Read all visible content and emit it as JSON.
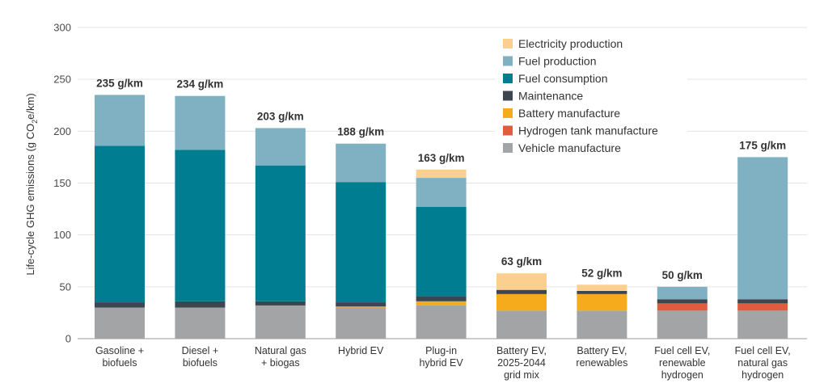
{
  "chart_data": {
    "type": "bar",
    "stacked": true,
    "ylabel_parts": [
      "Life-cycle GHG emissions (g CO",
      "2",
      "e/km)"
    ],
    "ylim": [
      0,
      300
    ],
    "yticks": [
      0,
      50,
      100,
      150,
      200,
      250,
      300
    ],
    "grid": true,
    "legend_position": "top-right",
    "categories": [
      [
        "Gasoline +",
        "biofuels"
      ],
      [
        "Diesel +",
        "biofuels"
      ],
      [
        "Natural gas",
        "+ biogas"
      ],
      [
        "Hybrid EV"
      ],
      [
        "Plug-in",
        "hybrid EV"
      ],
      [
        "Battery EV,",
        "2025-2044",
        "grid mix"
      ],
      [
        "Battery EV,",
        "renewables"
      ],
      [
        "Fuel cell EV,",
        "renewable",
        "hydrogen"
      ],
      [
        "Fuel cell EV,",
        "natural gas",
        "hydrogen"
      ]
    ],
    "totals": [
      "235 g/km",
      "234 g/km",
      "203 g/km",
      "188 g/km",
      "163 g/km",
      "63 g/km",
      "52 g/km",
      "50 g/km",
      "175 g/km"
    ],
    "series": [
      {
        "name": "Vehicle manufacture",
        "color": "#a3a4a6",
        "values": [
          30,
          30,
          32,
          30,
          32,
          27,
          27,
          27,
          27
        ]
      },
      {
        "name": "Hydrogen tank manufacture",
        "color": "#e15b3f",
        "values": [
          0,
          0,
          0,
          0,
          0,
          0,
          0,
          7,
          7
        ]
      },
      {
        "name": "Battery manufacture",
        "color": "#f5ab1c",
        "values": [
          0,
          0,
          0,
          1,
          4,
          16,
          16,
          0,
          0
        ]
      },
      {
        "name": "Maintenance",
        "color": "#3c4650",
        "values": [
          5,
          6,
          4,
          4,
          5,
          4,
          3,
          4,
          4
        ]
      },
      {
        "name": "Fuel consumption",
        "color": "#007d91",
        "values": [
          151,
          146,
          131,
          116,
          86,
          0,
          0,
          0,
          0
        ]
      },
      {
        "name": "Fuel production",
        "color": "#7fb1c2",
        "values": [
          49,
          52,
          36,
          37,
          28,
          0,
          0,
          12,
          137
        ]
      },
      {
        "name": "Electricity production",
        "color": "#fbd08f",
        "values": [
          0,
          0,
          0,
          0,
          8,
          16,
          6,
          0,
          0
        ]
      }
    ],
    "legend_order": [
      "Electricity production",
      "Fuel production",
      "Fuel consumption",
      "Maintenance",
      "Battery manufacture",
      "Hydrogen tank manufacture",
      "Vehicle manufacture"
    ]
  }
}
